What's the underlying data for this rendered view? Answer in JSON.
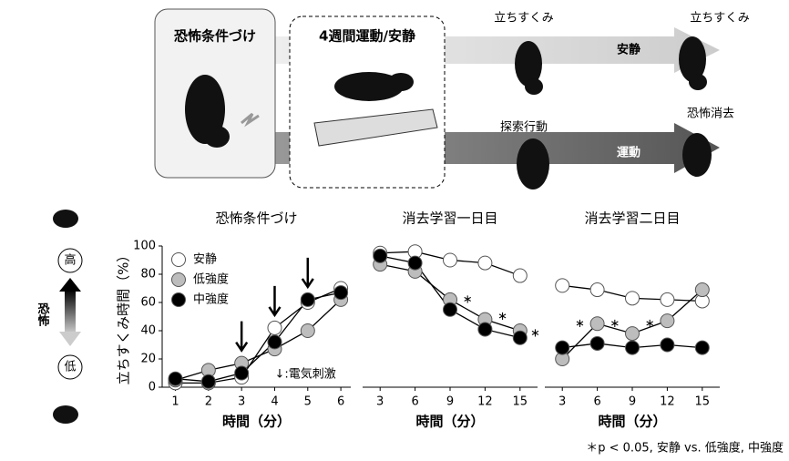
{
  "diagram": {
    "box1": "恐怖条件づけ",
    "box2": "4週間運動/安静",
    "top_right1": "立ちすくみ",
    "top_right2": "立ちすくみ",
    "arrow_top": "安静",
    "arrow_bottom": "運動",
    "bottom_mid": "探索行動",
    "bottom_right": "恐怖消去"
  },
  "fear_scale": {
    "high": "高",
    "low": "低",
    "label": "恐怖"
  },
  "chart_data": [
    {
      "type": "line",
      "title": "恐怖条件づけ",
      "ylabel": "立ちすくみ時間（%）",
      "xlabel": "時間（分）",
      "x": [
        1,
        2,
        3,
        4,
        5,
        6
      ],
      "xlim": [
        0.6,
        6.3
      ],
      "xticks": [
        1,
        2,
        3,
        4,
        5,
        6
      ],
      "ylim": [
        0,
        100
      ],
      "yticks": [
        0,
        20,
        40,
        60,
        80,
        100
      ],
      "series": [
        {
          "name": "安静",
          "color": "#ffffff",
          "values": [
            3,
            3,
            7,
            42,
            60,
            70
          ]
        },
        {
          "name": "低強度",
          "color": "#bdbdbd",
          "values": [
            5,
            12,
            17,
            27,
            40,
            62
          ]
        },
        {
          "name": "中強度",
          "color": "#000000",
          "values": [
            6,
            4,
            10,
            32,
            62,
            67
          ]
        }
      ],
      "arrows_at": [
        3,
        4,
        5
      ],
      "annotation": "↓:電気刺激"
    },
    {
      "type": "line",
      "title": "消去学習一日目",
      "xlabel": "時間（分）",
      "x": [
        3,
        6,
        9,
        12,
        15
      ],
      "xlim": [
        1.5,
        16.5
      ],
      "xticks": [
        3,
        6,
        9,
        12,
        15
      ],
      "ylim": [
        0,
        100
      ],
      "series": [
        {
          "color": "#ffffff",
          "values": [
            95,
            96,
            90,
            88,
            79
          ]
        },
        {
          "color": "#bdbdbd",
          "values": [
            87,
            82,
            62,
            48,
            40
          ]
        },
        {
          "color": "#000000",
          "values": [
            93,
            88,
            55,
            41,
            35
          ]
        }
      ],
      "asterisks_at": [
        10.5,
        13.5,
        16.3
      ]
    },
    {
      "type": "line",
      "title": "消去学習二日目",
      "xlabel": "時間（分）",
      "x": [
        3,
        6,
        9,
        12,
        15
      ],
      "xlim": [
        1.5,
        16.5
      ],
      "xticks": [
        3,
        6,
        9,
        12,
        15
      ],
      "ylim": [
        0,
        100
      ],
      "series": [
        {
          "color": "#ffffff",
          "values": [
            72,
            69,
            63,
            62,
            61
          ]
        },
        {
          "color": "#bdbdbd",
          "values": [
            20,
            45,
            38,
            47,
            69
          ]
        },
        {
          "color": "#000000",
          "values": [
            28,
            31,
            28,
            30,
            28
          ]
        }
      ],
      "asterisks_at": [
        4.5,
        7.5,
        10.5
      ]
    }
  ],
  "footnote": "＊p < 0.05, 安静 vs. 低強度, 中強度"
}
